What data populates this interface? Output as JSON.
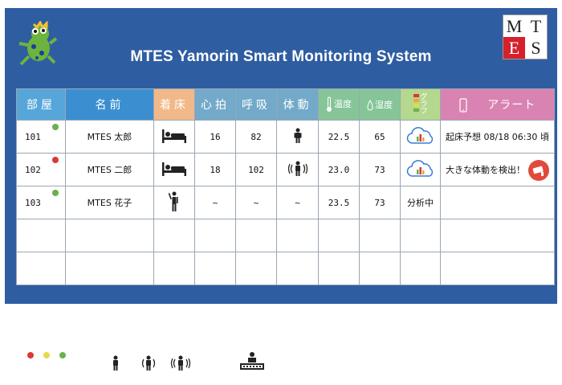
{
  "title": "MTES Yamorin Smart Monitoring System",
  "logo": {
    "letters": [
      "M",
      "T",
      "E",
      "S"
    ]
  },
  "headers": {
    "room": "部屋",
    "name": "名前",
    "bed": "着床",
    "heart_rate": "心拍",
    "respiration": "呼吸",
    "body_motion": "体動",
    "temperature": "温度",
    "humidity": "湿度",
    "graph": "グラフ",
    "alert": "アラート"
  },
  "rows": [
    {
      "room": "101",
      "status_color": "#6ab04c",
      "name": "MTES 太郎",
      "bed_icon": "bed-icon",
      "heart_rate": "16",
      "respiration": "82",
      "motion_icon": "person-icon",
      "temperature": "22.5",
      "humidity": "65",
      "graph_icon": "cloud-chart-icon",
      "graph_text": "",
      "alert": "起床予想 08/18 06:30 頃",
      "alert_icon": ""
    },
    {
      "room": "102",
      "status_color": "#d93838",
      "name": "MTES 二郎",
      "bed_icon": "bed-icon",
      "heart_rate": "18",
      "respiration": "102",
      "motion_icon": "person-moving-icon",
      "temperature": "23.0",
      "humidity": "73",
      "graph_icon": "cloud-chart-icon",
      "graph_text": "",
      "alert": "大きな体動を検出！",
      "alert_icon": "camera-icon"
    },
    {
      "room": "103",
      "status_color": "#6ab04c",
      "name": "MTES 花子",
      "bed_icon": "person-standing-icon",
      "heart_rate": "~",
      "respiration": "~",
      "motion_icon": "",
      "motion_text": "~",
      "temperature": "23.5",
      "humidity": "73",
      "graph_icon": "",
      "graph_text": "分析中",
      "alert": "",
      "alert_icon": ""
    }
  ],
  "legend": {
    "dot_colors": [
      "#d93838",
      "#e8d84a",
      "#6ab04c"
    ],
    "icons": [
      "person-icon",
      "person-slight-motion-icon",
      "person-moving-icon",
      "robot-icon"
    ]
  }
}
